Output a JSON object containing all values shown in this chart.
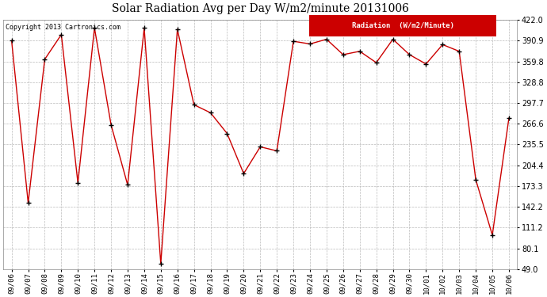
{
  "title": "Solar Radiation Avg per Day W/m2/minute 20131006",
  "copyright_text": "Copyright 2013 Cartronics.com",
  "legend_label": "Radiation  (W/m2/Minute)",
  "background_color": "#ffffff",
  "plot_background_color": "#ffffff",
  "grid_color": "#bbbbbb",
  "line_color": "#cc0000",
  "marker_color": "#000000",
  "legend_bg": "#cc0000",
  "legend_fg": "#ffffff",
  "ylim": [
    49.0,
    422.0
  ],
  "yticks": [
    49.0,
    80.1,
    111.2,
    142.2,
    173.3,
    204.4,
    235.5,
    266.6,
    297.7,
    328.8,
    359.8,
    390.9,
    422.0
  ],
  "dates": [
    "09/06",
    "09/07",
    "09/08",
    "09/09",
    "09/10",
    "09/11",
    "09/12",
    "09/13",
    "09/14",
    "09/15",
    "09/16",
    "09/17",
    "09/18",
    "09/19",
    "09/20",
    "09/21",
    "09/22",
    "09/23",
    "09/24",
    "09/25",
    "09/26",
    "09/27",
    "09/28",
    "09/29",
    "09/30",
    "10/01",
    "10/02",
    "10/03",
    "10/04",
    "10/05",
    "10/06"
  ],
  "values": [
    391.0,
    148.0,
    363.0,
    400.0,
    178.0,
    410.0,
    265.0,
    175.0,
    410.0,
    57.0,
    408.0,
    295.0,
    283.0,
    252.0,
    192.0,
    232.0,
    226.0,
    390.0,
    386.0,
    393.0,
    370.0,
    375.0,
    358.0,
    393.0,
    370.0,
    356.0,
    385.0,
    375.0,
    183.0,
    100.0,
    275.0
  ]
}
